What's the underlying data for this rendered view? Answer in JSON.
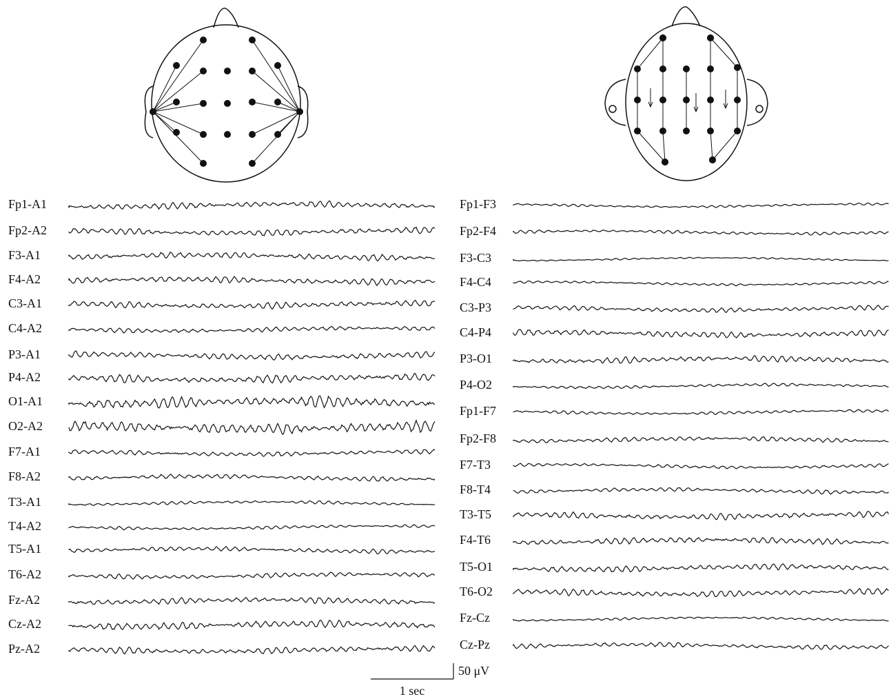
{
  "left_montage": {
    "channels": [
      "Fp1-A1",
      "Fp2-A2",
      "F3-A1",
      "F4-A2",
      "C3-A1",
      "C4-A2",
      "P3-A1",
      "P4-A2",
      "O1-A1",
      "O2-A2",
      "F7-A1",
      "F8-A2",
      "T3-A1",
      "T4-A2",
      "T5-A1",
      "T6-A2",
      "Fz-A2",
      "Cz-A2",
      "Pz-A2"
    ]
  },
  "right_montage": {
    "channels": [
      "Fp1-F3",
      "Fp2-F4",
      "F3-C3",
      "F4-C4",
      "C3-P3",
      "C4-P4",
      "P3-O1",
      "P4-O2",
      "Fp1-F7",
      "Fp2-F8",
      "F7-T3",
      "F8-T4",
      "T3-T5",
      "F4-T6",
      "T5-O1",
      "T6-O2",
      "Fz-Cz",
      "Cz-Pz"
    ]
  },
  "scale_bar": {
    "amplitude": "50 μV",
    "time": "1 sec"
  }
}
